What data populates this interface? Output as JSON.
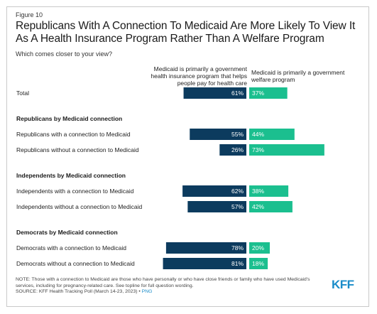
{
  "figure_label": "Figure 10",
  "title": "Republicans With A Connection To Medicaid Are More Likely To View It As A Health Insurance Program Rather Than A Welfare Program",
  "subtitle": "Which comes closer to your view?",
  "logo_text": "KFF",
  "note": "NOTE: Those with a connection to Medicaid are those who have personally or who have close friends or family who have used Medicaid's services, including for pregnancy-related care. See topline for full question wording.",
  "source": "SOURCE: KFF Health Tracking Poll (March 14-23, 2023) •",
  "source_link": "PNG",
  "colors": {
    "insurance": "#0c3b5e",
    "welfare": "#1bbf8f"
  },
  "chart_data": {
    "type": "bar",
    "orientation": "horizontal-diverging",
    "legend": [
      "Medicaid is primarily a government health insurance program that helps people pay for health care",
      "Medicaid is primarily a government welfare program"
    ],
    "groups": [
      {
        "heading": "",
        "rows": [
          {
            "label": "Total",
            "insurance": 61,
            "welfare": 37
          }
        ]
      },
      {
        "heading": "Republicans by Medicaid connection",
        "rows": [
          {
            "label": "Republicans with a connection to Medicaid",
            "insurance": 55,
            "welfare": 44
          },
          {
            "label": "Republicans without a connection to Medicaid",
            "insurance": 26,
            "welfare": 73
          }
        ]
      },
      {
        "heading": "Independents by Medicaid connection",
        "rows": [
          {
            "label": "Independents with a connection to Medicaid",
            "insurance": 62,
            "welfare": 38
          },
          {
            "label": "Independents without a connection to Medicaid",
            "insurance": 57,
            "welfare": 42
          }
        ]
      },
      {
        "heading": "Democrats by Medicaid connection",
        "rows": [
          {
            "label": "Democrats with a connection to Medicaid",
            "insurance": 78,
            "welfare": 20
          },
          {
            "label": "Democrats without a connection to Medicaid",
            "insurance": 81,
            "welfare": 18
          }
        ]
      }
    ],
    "value_suffix": "%"
  }
}
